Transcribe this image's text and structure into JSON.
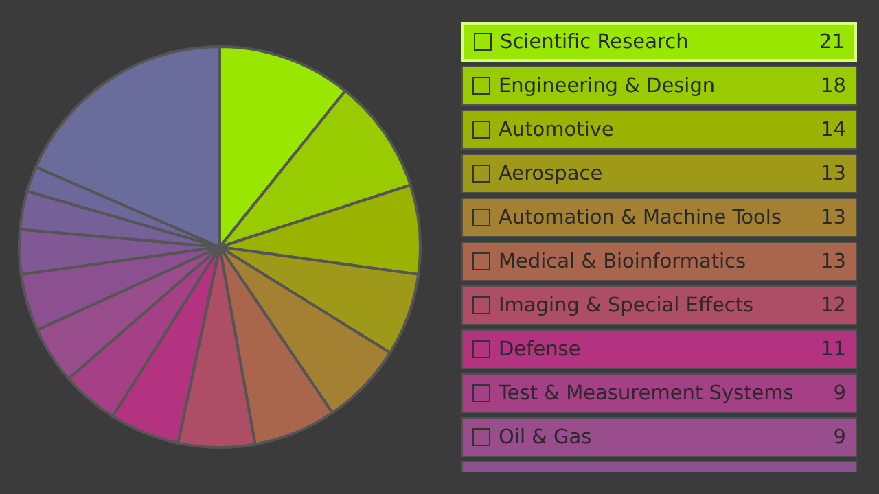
{
  "chart_data": {
    "type": "pie",
    "categories": [
      "Scientific Research",
      "Engineering & Design",
      "Automotive",
      "Aerospace",
      "Automation & Machine Tools",
      "Medical & Bioinformatics",
      "Imaging & Special Effects",
      "Defense",
      "Test & Measurement Systems",
      "Oil & Gas",
      null,
      null,
      null,
      null,
      null
    ],
    "values": [
      21,
      18,
      14,
      13,
      13,
      13,
      12,
      11,
      9,
      9,
      9,
      7,
      6,
      4,
      36
    ],
    "value_labels": [
      "21",
      "18",
      "14",
      "13",
      "13",
      "13",
      "12",
      "11",
      "9",
      "9",
      null,
      null,
      null,
      null,
      null
    ],
    "colors": [
      "#99e600",
      "#99cc00",
      "#99b300",
      "#9f991a",
      "#a48033",
      "#a9664d",
      "#ae4d66",
      "#b33380",
      "#a64086",
      "#994d8c",
      "#8c5090",
      "#805894",
      "#756098",
      "#6c689c",
      "#6a6c9c"
    ],
    "legend": "right"
  }
}
